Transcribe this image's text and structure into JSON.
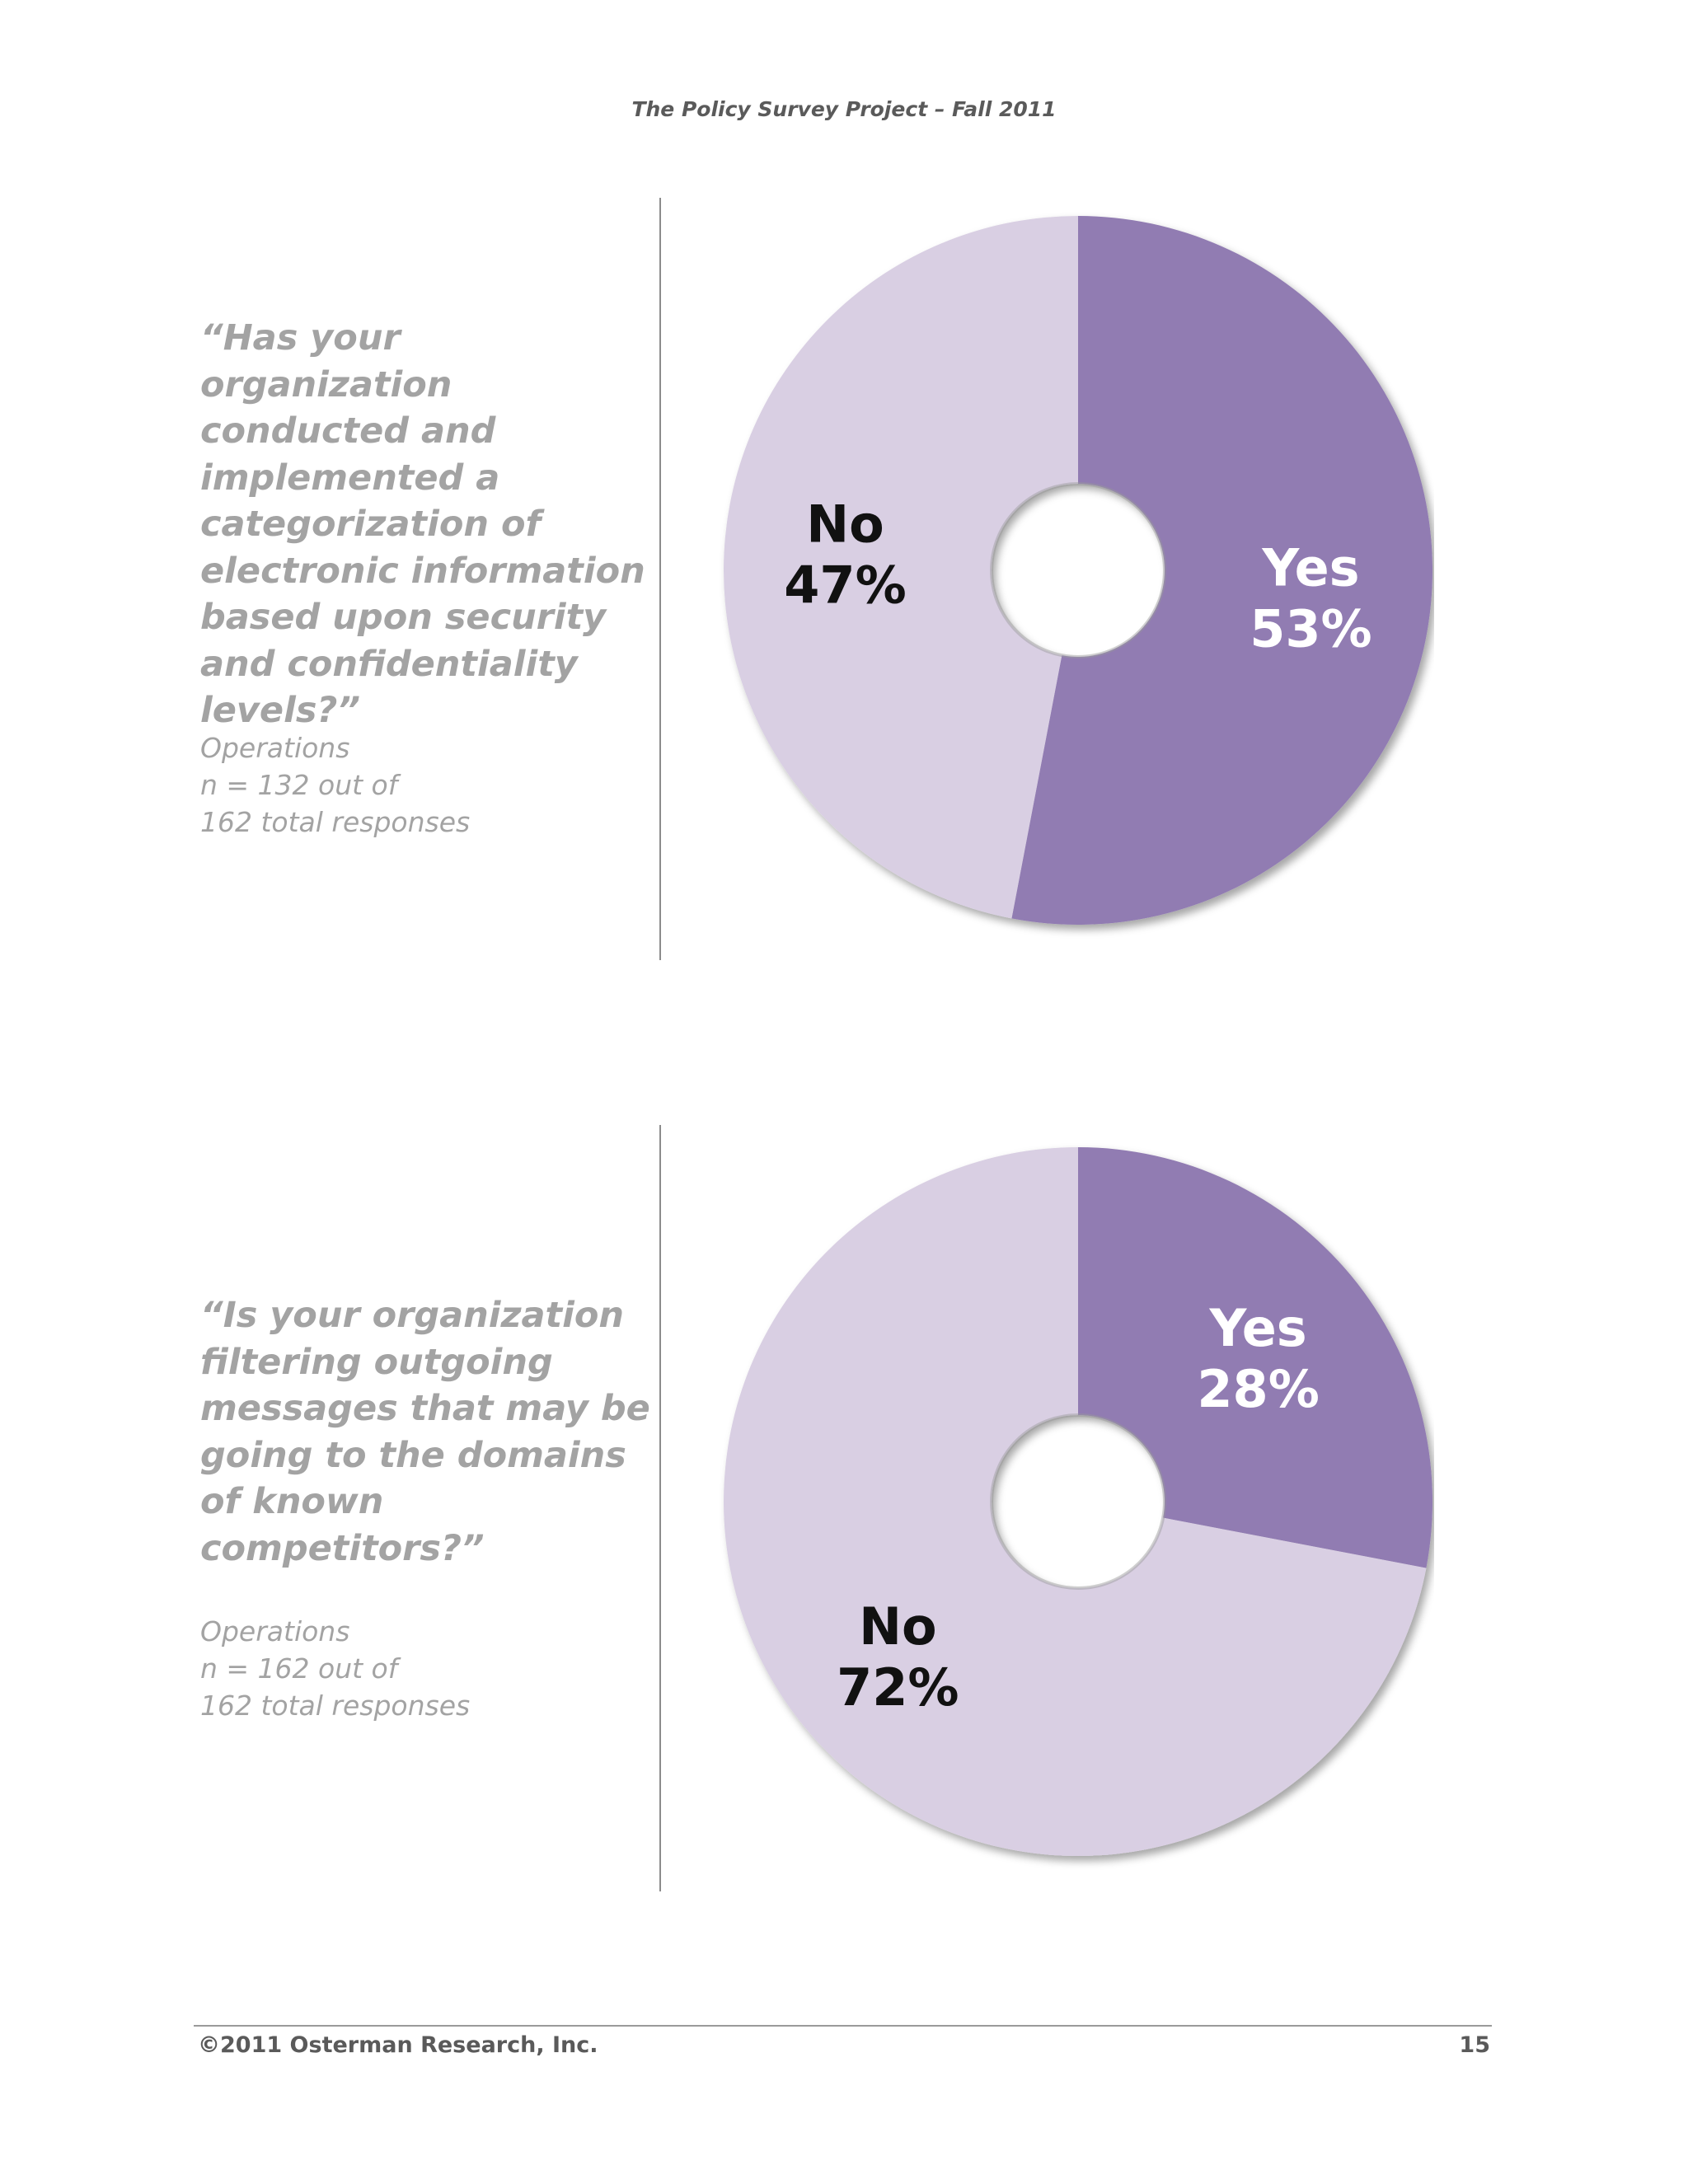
{
  "header": {
    "title": "The Policy Survey Project – Fall 2011"
  },
  "sections": [
    {
      "question": "“Has your organization conducted and implemented a categorization of electronic information based upon security and confidentiality levels?”",
      "meta": [
        "Operations",
        "n = 132 out of",
        "162 total responses"
      ]
    },
    {
      "question": "“Is your organization filtering outgoing messages that may be going to the domains of known competitors?”",
      "meta": [
        "Operations",
        "n = 162 out of",
        "162 total responses"
      ]
    }
  ],
  "colors": {
    "yes": "#917cb2",
    "no": "#d9cfe3",
    "yes_label": "#ffffff",
    "no_label": "#111111"
  },
  "chart_data": [
    {
      "type": "pie",
      "donut": true,
      "labels": [
        "Yes",
        "No"
      ],
      "values": [
        53,
        47
      ],
      "data_labels": [
        "53%",
        "47%"
      ]
    },
    {
      "type": "pie",
      "donut": true,
      "labels": [
        "Yes",
        "No"
      ],
      "values": [
        28,
        72
      ],
      "data_labels": [
        "28%",
        "72%"
      ]
    }
  ],
  "footer": {
    "copyright": "©2011 Osterman Research, Inc.",
    "page_number": "15"
  }
}
